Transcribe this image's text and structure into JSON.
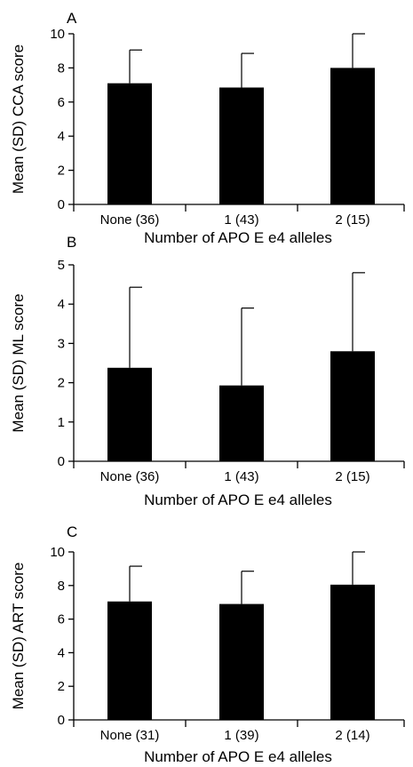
{
  "chart_data": [
    {
      "type": "bar",
      "panel_label": "A",
      "categories": [
        "None (36)",
        "1 (43)",
        "2 (15)"
      ],
      "values": [
        7.1,
        6.85,
        8.0
      ],
      "errors": [
        1.95,
        2.0,
        2.0
      ],
      "ylabel": "Mean (SD) CCA score",
      "xlabel": "Number of APO E e4 alleles",
      "ylim": [
        0,
        10
      ],
      "yticks": [
        0,
        2,
        4,
        6,
        8,
        10
      ],
      "bar_color": "#000000"
    },
    {
      "type": "bar",
      "panel_label": "B",
      "categories": [
        "None (36)",
        "1 (43)",
        "2 (15)"
      ],
      "values": [
        2.38,
        1.93,
        2.8
      ],
      "errors": [
        2.05,
        1.97,
        2.0
      ],
      "ylabel": "Mean (SD) ML score",
      "xlabel": "Number of APO E e4 alleles",
      "ylim": [
        0,
        5
      ],
      "yticks": [
        0,
        1,
        2,
        3,
        4,
        5
      ],
      "bar_color": "#000000"
    },
    {
      "type": "bar",
      "panel_label": "C",
      "categories": [
        "None (31)",
        "1 (39)",
        "2 (14)"
      ],
      "values": [
        7.05,
        6.9,
        8.05
      ],
      "errors": [
        2.1,
        1.95,
        1.95
      ],
      "ylabel": "Mean (SD) ART score",
      "xlabel": "Number of APO E e4 alleles",
      "ylim": [
        0,
        10
      ],
      "yticks": [
        0,
        2,
        4,
        6,
        8,
        10
      ],
      "bar_color": "#000000"
    }
  ]
}
